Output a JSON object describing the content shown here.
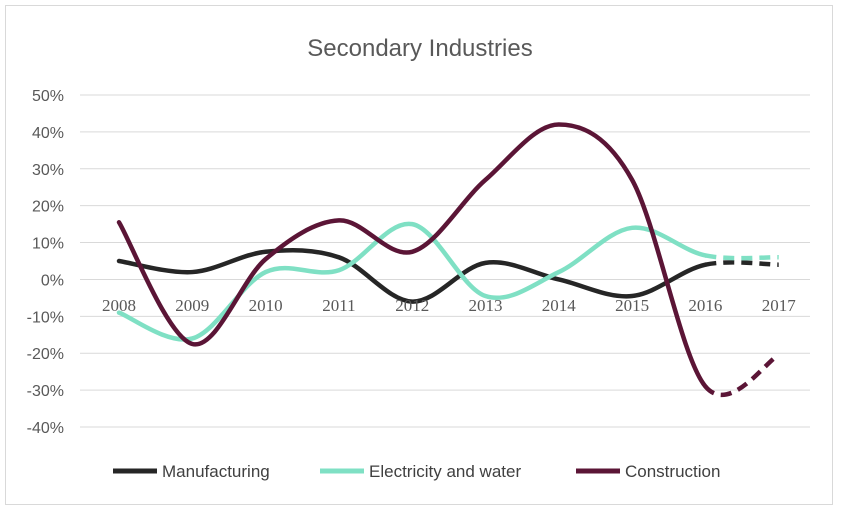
{
  "chart_data": {
    "type": "line",
    "title": "Secondary Industries",
    "categories": [
      "2008",
      "2009",
      "2010",
      "2011",
      "2012",
      "2013",
      "2014",
      "2015",
      "2016",
      "2017"
    ],
    "ylim": [
      -40,
      50
    ],
    "yticks": [
      50,
      40,
      30,
      20,
      10,
      0,
      -10,
      -20,
      -30,
      -40
    ],
    "ytick_labels": [
      "50%",
      "40%",
      "30%",
      "20%",
      "10%",
      "0%",
      "-10%",
      "-20%",
      "-30%",
      "-40%"
    ],
    "grid": true,
    "legend_position": "bottom",
    "forecast_from": "2016",
    "series": [
      {
        "name": "Manufacturing",
        "color": "#262626",
        "values": [
          5,
          2,
          7.5,
          6,
          -6,
          4.5,
          0,
          -4.5,
          4,
          4
        ]
      },
      {
        "name": "Electricity and water",
        "color": "#7fe0c4",
        "values": [
          -9,
          -16,
          2,
          2.5,
          15,
          -4.5,
          2,
          14,
          6.5,
          6
        ]
      },
      {
        "name": "Construction",
        "color": "#5b1536",
        "values": [
          15.5,
          -17.5,
          5.5,
          16,
          7.5,
          27,
          42,
          27,
          -29,
          -20.5
        ]
      }
    ]
  }
}
